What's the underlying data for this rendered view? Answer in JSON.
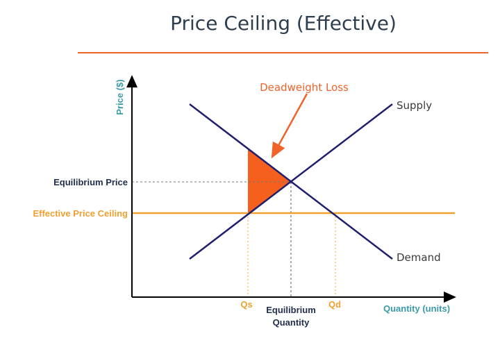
{
  "title": "Price Ceiling (Effective)",
  "axes": {
    "y_label": "Price ($)",
    "x_label": "Quantity (units)"
  },
  "curves": {
    "supply": "Supply",
    "demand": "Demand"
  },
  "levels": {
    "equilibrium_price": "Equilibrium Price",
    "price_ceiling": "Effective Price Ceiling"
  },
  "quantities": {
    "qs": "Qs",
    "qd": "Qd",
    "eq_line1": "Equilibrium",
    "eq_line2": "Quantity"
  },
  "annotation": "Deadweight Loss",
  "colors": {
    "title": "#2d3e50",
    "rule": "#f0622a",
    "curve": "#1f1f6e",
    "ceiling": "#f0a030",
    "deadweight": "#f5601e",
    "axis_label": "#3a9aa8",
    "eq_label": "#1f2d4e"
  }
}
